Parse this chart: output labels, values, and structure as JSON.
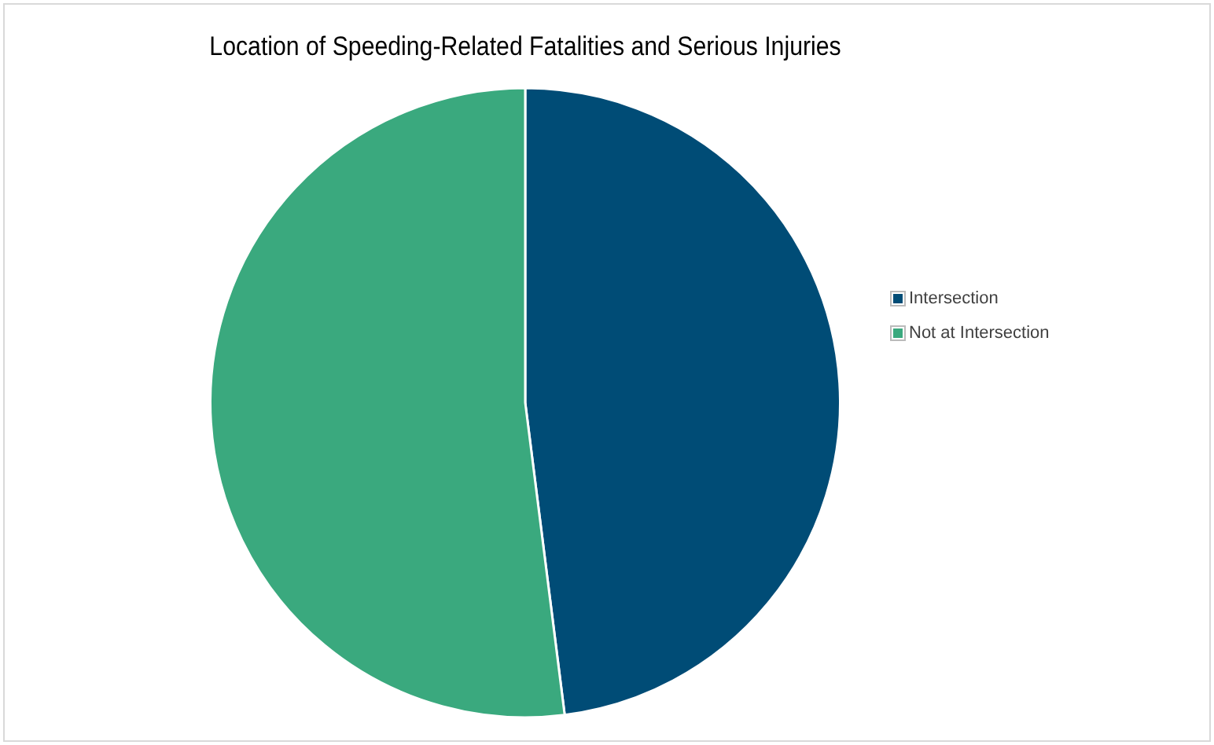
{
  "chart_data": {
    "type": "pie",
    "title": "Location of Speeding-Related Fatalities and Serious Injuries",
    "categories": [
      "Intersection",
      "Not at Intersection"
    ],
    "values": [
      48,
      52
    ],
    "colors": [
      "#004c76",
      "#3aa97e"
    ],
    "legend": "right"
  }
}
